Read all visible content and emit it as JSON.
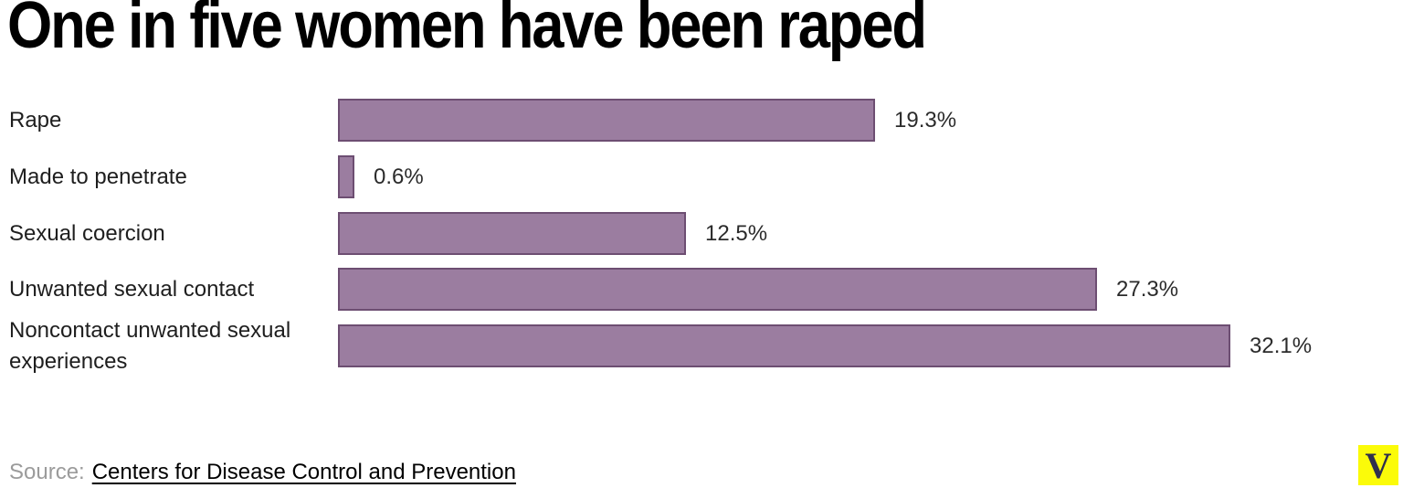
{
  "title": "One in five women have been raped",
  "chart_data": {
    "type": "bar",
    "orientation": "horizontal",
    "title": "One in five women have been raped",
    "categories": [
      "Rape",
      "Made to penetrate",
      "Sexual coercion",
      "Unwanted sexual contact",
      "Noncontact unwanted sexual experiences"
    ],
    "values": [
      19.3,
      0.6,
      12.5,
      27.3,
      32.1
    ],
    "value_labels": [
      "19.3%",
      "0.6%",
      "12.5%",
      "27.3%",
      "32.1%"
    ],
    "xlim": [
      0,
      35
    ],
    "grid": false,
    "legend": "none",
    "bar_color": "#9b7da0",
    "bar_border_color": "#6d4e72"
  },
  "source": {
    "prefix": "Source:",
    "link_text": "Centers for Disease Control and Prevention"
  },
  "logo": {
    "letter": "V",
    "background": "#fbfb09",
    "foreground": "#2f2f4d"
  }
}
